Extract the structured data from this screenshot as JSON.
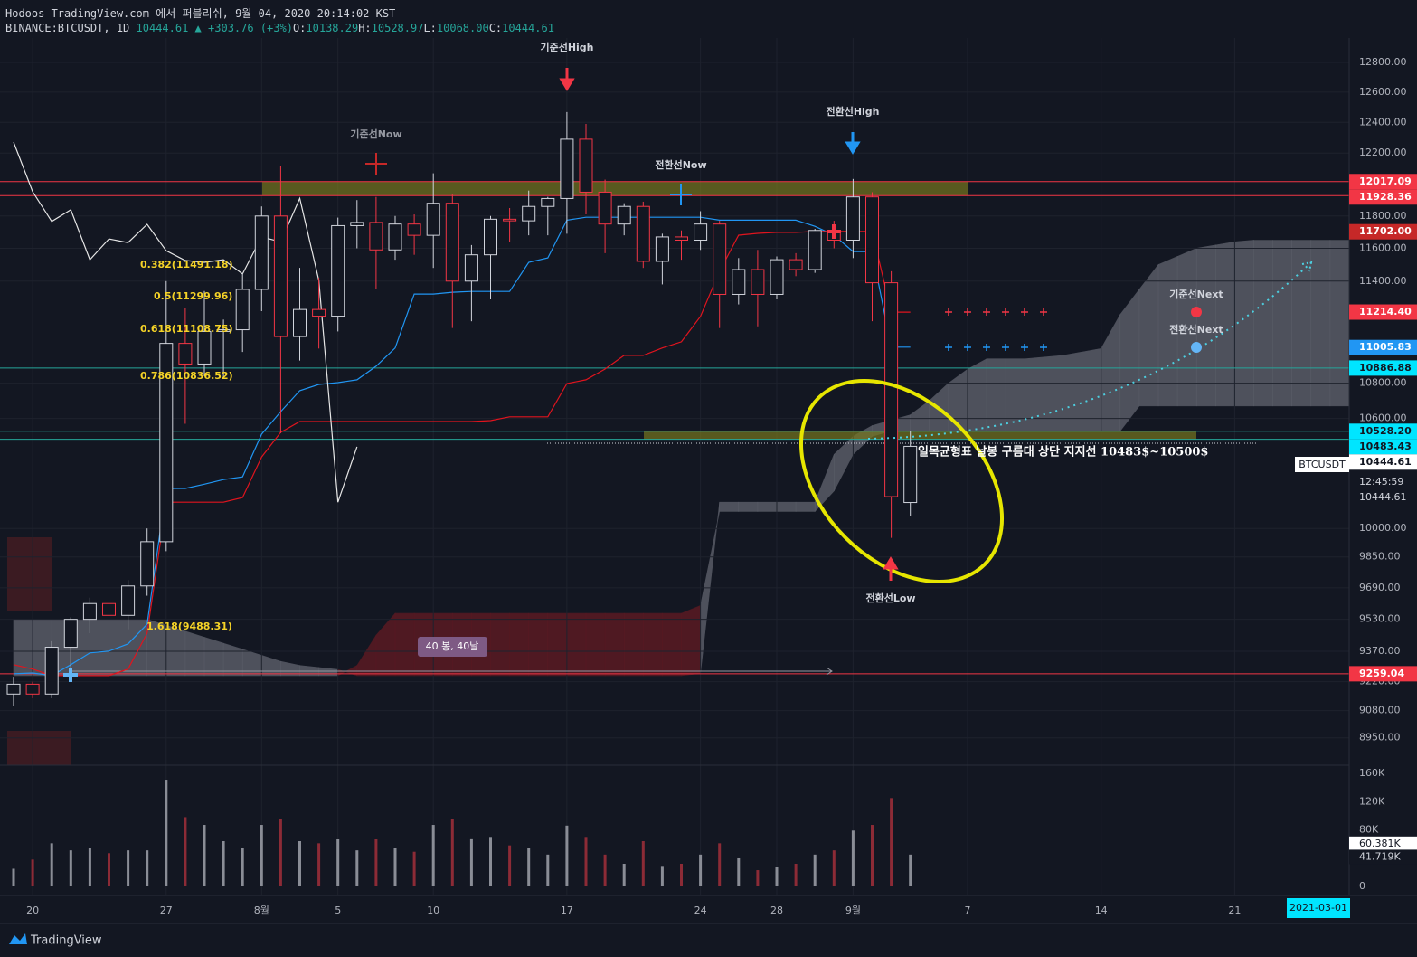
{
  "header": {
    "title": "Hodoos TradingView.com 에서 퍼블리쉬, 9월 04, 2020 20:14:02 KST",
    "symbol": "BINANCE:BTCUSDT, 1D",
    "price": "10444.61",
    "change_icon": "▲",
    "change": "+303.76 (+3%)",
    "ohlc": [
      [
        "O:",
        "10138.29"
      ],
      [
        "H:",
        "10528.97"
      ],
      [
        "L:",
        "10068.00"
      ],
      [
        "C:",
        "10444.61"
      ]
    ]
  },
  "chart_data": {
    "type": "candlestick",
    "log_scale": true,
    "grid": true,
    "categories": [
      null,
      "20",
      null,
      null,
      null,
      null,
      null,
      null,
      "27",
      null,
      null,
      null,
      null,
      "8월",
      null,
      null,
      null,
      "5",
      null,
      null,
      null,
      null,
      "10",
      null,
      null,
      null,
      null,
      null,
      null,
      "17",
      null,
      null,
      null,
      null,
      null,
      null,
      "24",
      null,
      null,
      null,
      "28",
      null,
      null,
      null,
      "9월",
      null,
      null,
      null,
      null,
      null,
      "7",
      null,
      null,
      null,
      null,
      null,
      null,
      "14",
      null,
      null,
      null,
      null,
      null,
      null,
      "21",
      null,
      null,
      null,
      null,
      null,
      null
    ],
    "open": [
      9160,
      9208,
      9160,
      9390,
      9530,
      9610,
      9550,
      9700,
      9930,
      11030,
      10910,
      11100,
      11110,
      11350,
      11800,
      11070,
      11230,
      11190,
      11740,
      11760,
      11590,
      11750,
      11680,
      11880,
      11400,
      11560,
      11780,
      11770,
      11860,
      11910,
      12290,
      11950,
      11750,
      11860,
      11520,
      11670,
      11650,
      11750,
      11320,
      11470,
      11320,
      11530,
      11470,
      11710,
      11650,
      11920,
      11390,
      10138.29,
      null,
      null,
      null,
      null,
      null,
      null,
      null,
      null,
      null,
      null,
      null,
      null,
      null,
      null,
      null,
      null,
      null,
      null,
      null,
      null,
      null,
      null,
      null
    ],
    "high": [
      9240,
      9220,
      9420,
      9540,
      9640,
      9640,
      9730,
      10000,
      11400,
      11240,
      11340,
      11170,
      11450,
      11860,
      12119,
      11480,
      11420,
      11790,
      11900,
      11920,
      11800,
      11810,
      12070,
      11940,
      11620,
      11800,
      11850,
      11960,
      11920,
      12468,
      12390,
      12030,
      11880,
      11890,
      11690,
      11710,
      11830,
      11770,
      11540,
      11590,
      11550,
      11570,
      11720,
      11770,
      12034,
      11950,
      11460,
      10528.97,
      null,
      null,
      null,
      null,
      null,
      null,
      null,
      null,
      null,
      null,
      null,
      null,
      null,
      null,
      null,
      null,
      null,
      null,
      null,
      null,
      null,
      null,
      null
    ],
    "low": [
      9100,
      9140,
      9140,
      9290,
      9460,
      9440,
      9480,
      9650,
      9880,
      10570,
      10840,
      10830,
      10980,
      11220,
      10518,
      10930,
      11000,
      11100,
      11600,
      11350,
      11530,
      11560,
      11480,
      11120,
      11160,
      11290,
      11640,
      11680,
      11680,
      11690,
      11810,
      11570,
      11680,
      11480,
      11380,
      11530,
      11590,
      11120,
      11260,
      11130,
      11290,
      11430,
      11450,
      11600,
      11540,
      11160,
      9950,
      10068,
      null,
      null,
      null,
      null,
      null,
      null,
      null,
      null,
      null,
      null,
      null,
      null,
      null,
      null,
      null,
      null,
      null,
      null,
      null,
      null,
      null,
      null,
      null
    ],
    "close": [
      9208,
      9160,
      9390,
      9530,
      9610,
      9550,
      9700,
      9930,
      11030,
      10910,
      11100,
      11110,
      11350,
      11800,
      11070,
      11230,
      11190,
      11740,
      11760,
      11590,
      11750,
      11680,
      11880,
      11400,
      11560,
      11780,
      11770,
      11860,
      11910,
      12290,
      11950,
      11750,
      11860,
      11520,
      11670,
      11650,
      11750,
      11320,
      11470,
      11320,
      11530,
      11470,
      11710,
      11650,
      11920,
      11390,
      10170,
      10444.61,
      null,
      null,
      null,
      null,
      null,
      null,
      null,
      null,
      null,
      null,
      null,
      null,
      null,
      null,
      null,
      null,
      null,
      null,
      null,
      null,
      null,
      null,
      null
    ],
    "up_color": "#d1d4dc",
    "down_color": "#f23645",
    "series": [
      {
        "name": "전환선",
        "color": "#2196f3",
        "values": [
          9259,
          9263,
          9250,
          9304,
          9362,
          9371,
          9407,
          9505,
          10214,
          10214,
          10237,
          10262,
          10277,
          10512,
          10638,
          10757,
          10793,
          10803,
          10819,
          10897,
          11003,
          11322,
          11322,
          11333,
          11338,
          11338,
          11338,
          11514,
          11541,
          11774,
          11792,
          11792,
          11792,
          11792,
          11792,
          11792,
          11792,
          11774,
          11774,
          11774,
          11774,
          11774,
          11736,
          11681,
          11580,
          11580,
          11008,
          11008,
          null,
          null,
          null,
          null,
          null,
          null,
          null,
          null,
          null,
          null,
          null,
          null,
          null,
          null,
          null,
          null,
          null,
          null,
          null,
          null,
          null,
          null,
          null
        ]
      },
      {
        "name": "기준선",
        "color": "#e0141e",
        "values": [
          9304,
          9282,
          9250,
          9250,
          9250,
          9250,
          9282,
          9460,
          10140,
          10140,
          10140,
          10140,
          10165,
          10386,
          10522,
          10583,
          10583,
          10583,
          10583,
          10583,
          10583,
          10583,
          10583,
          10583,
          10583,
          10588,
          10609,
          10609,
          10609,
          10798,
          10819,
          10881,
          10960,
          10960,
          11003,
          11039,
          11189,
          11459,
          11681,
          11692,
          11698,
          11698,
          11704,
          11704,
          11704,
          11704,
          11214,
          11214,
          null,
          null,
          null,
          null,
          null,
          null,
          null,
          null,
          null,
          null,
          null,
          null,
          null,
          null,
          null,
          null,
          null,
          null,
          null,
          null,
          null,
          null,
          null
        ]
      },
      {
        "name": "후행스팬",
        "color": "#e6e6e6",
        "values": [
          12271,
          11953,
          11766,
          11839,
          11530,
          11658,
          11635,
          11748,
          11585,
          11525,
          11514,
          11530,
          11443,
          11670,
          11640,
          11911,
          11404,
          10140,
          10442,
          null,
          null,
          null,
          null,
          null,
          null,
          null,
          null,
          null,
          null,
          null,
          null,
          null,
          null,
          null,
          null,
          null,
          null,
          null,
          null,
          null,
          null,
          null,
          null,
          null,
          null,
          null,
          null,
          null,
          null,
          null,
          null,
          null,
          null,
          null,
          null,
          null,
          null,
          null,
          null,
          null,
          null,
          null,
          null,
          null,
          null,
          null,
          null,
          null,
          null,
          null,
          null
        ]
      }
    ],
    "cloud": {
      "up_color": "#5d606b",
      "down_color": "#5a1a22",
      "span_a": [
        9530,
        9530,
        9530,
        9530,
        9530,
        9530,
        9530,
        9530,
        9500,
        9470,
        9440,
        9410,
        9380,
        9350,
        9320,
        9300,
        9290,
        9280,
        9250,
        9250,
        9250,
        9250,
        9250,
        9250,
        9250,
        9250,
        9250,
        9250,
        9250,
        9250,
        9250,
        9250,
        9250,
        9250,
        9250,
        9250,
        9260,
        10140,
        10140,
        10140,
        10140,
        10140,
        10140,
        10400,
        10500,
        10560,
        10590,
        10620,
        10700,
        10800,
        10880,
        10940,
        10940,
        10940,
        10950,
        10960,
        10980,
        11000,
        11200,
        11350,
        11500,
        11550,
        11600,
        11620,
        11640,
        11650,
        11650,
        11650,
        11650,
        11650,
        11650
      ],
      "span_b": [
        9250,
        9250,
        9250,
        9250,
        9250,
        9250,
        9250,
        9250,
        9250,
        9250,
        9250,
        9250,
        9250,
        9250,
        9250,
        9250,
        9250,
        9250,
        9300,
        9450,
        9560,
        9560,
        9560,
        9560,
        9560,
        9560,
        9560,
        9560,
        9560,
        9560,
        9560,
        9560,
        9560,
        9560,
        9560,
        9560,
        9600,
        10090,
        10090,
        10090,
        10090,
        10090,
        10090,
        10200,
        10400,
        10500,
        10530,
        10530,
        10530,
        10530,
        10530,
        10530,
        10530,
        10530,
        10530,
        10530,
        10530,
        10530,
        10530,
        10670,
        10670,
        10670,
        10670,
        10670,
        10670,
        10670,
        10670,
        10670,
        10670,
        10670,
        10670
      ]
    },
    "ylim": [
      8821,
      12967
    ],
    "yticks": [
      {
        "value": 12800,
        "label": "12800.00"
      },
      {
        "value": 12600,
        "label": "12600.00"
      },
      {
        "value": 12400,
        "label": "12400.00"
      },
      {
        "value": 12200,
        "label": "12200.00"
      },
      {
        "value": 11800,
        "label": "11800.00"
      },
      {
        "value": 11600,
        "label": "11600.00"
      },
      {
        "value": 11400,
        "label": "11400.00"
      },
      {
        "value": 10800,
        "label": "10800.00"
      },
      {
        "value": 10600,
        "label": "10600.00"
      },
      {
        "value": 10000,
        "label": "10000.00"
      },
      {
        "value": 9850,
        "label": "9850.00"
      },
      {
        "value": 9690,
        "label": "9690.00"
      },
      {
        "value": 9530,
        "label": "9530.00"
      },
      {
        "value": 9370,
        "label": "9370.00"
      },
      {
        "value": 9220,
        "label": "9220.00"
      },
      {
        "value": 9080,
        "label": "9080.00"
      },
      {
        "value": 8950,
        "label": "8950.00"
      }
    ],
    "price_labels": [
      {
        "price": 12017.09,
        "bg": "#f23645",
        "fg": "#ffffff",
        "line": "#f23645"
      },
      {
        "price": 11928.36,
        "bg": "#f23645",
        "fg": "#ffffff",
        "line": "#f23645"
      },
      {
        "price": {
          "value": 11702,
          "label": "11702.00"
        },
        "bg": "#c62828",
        "fg": "#ffffff"
      },
      {
        "price": {
          "value": 11214.4,
          "label": "11214.40"
        },
        "bg": "#f23645",
        "fg": "#ffffff"
      },
      {
        "price": 11005.83,
        "bg": "#2196f3",
        "fg": "#ffffff"
      },
      {
        "price": 10886.88,
        "bg": "#00e5ff",
        "fg": "#131722",
        "line": "#26a69a"
      },
      {
        "price": {
          "value": 10528.2,
          "label": "10528.20"
        },
        "bg": "#00e5ff",
        "fg": "#131722",
        "line": "#26a69a"
      },
      {
        "price": 10483.43,
        "bg": "#00e5ff",
        "fg": "#131722",
        "line": "#26a69a"
      },
      {
        "price": 10444.61,
        "bg": "#ffffff",
        "fg": "#131722"
      },
      {
        "price": 9259.04,
        "bg": "#f23645",
        "fg": "#ffffff",
        "line": "#f23645"
      }
    ],
    "status": {
      "symbol": "BTCUSDT",
      "countdown": "12:45:59",
      "price": "10444.61"
    },
    "volume": {
      "values": [
        25000,
        38000,
        61000,
        51000,
        54000,
        47000,
        51000,
        51000,
        151000,
        98000,
        87000,
        64000,
        54000,
        87000,
        96000,
        64000,
        61000,
        67000,
        51000,
        67000,
        54000,
        49000,
        87000,
        96000,
        68000,
        70000,
        58000,
        54000,
        45000,
        86000,
        70000,
        45000,
        32000,
        64000,
        29000,
        32000,
        45000,
        61000,
        41000,
        23000,
        28000,
        32000,
        45000,
        51000,
        79000,
        87000,
        125000,
        45000,
        null,
        null,
        null,
        null,
        null,
        null,
        null,
        null,
        null,
        null,
        null,
        null,
        null,
        null,
        null,
        null,
        null,
        null,
        null,
        null,
        null,
        null,
        null
      ],
      "up_color": "#8a8d96",
      "down_color": "#8c2b36",
      "ylim": [
        0,
        171520
      ],
      "yticks": [
        {
          "value": 160000,
          "label": "160K"
        },
        {
          "value": 120000,
          "label": "120K"
        },
        {
          "value": 80000,
          "label": "80K"
        },
        0
      ],
      "labels": [
        {
          "value": 60381,
          "label": "60.381K"
        },
        {
          "value": 41719,
          "label": "41.719K"
        }
      ]
    },
    "cursor_date": "2021-03-01",
    "annotations": {
      "kijun_high": "기준선High",
      "kijun_now": "기준선Now",
      "tenkan_now": "전환선Now",
      "tenkan_high": "전환선High",
      "kijun_next": "기준선Next",
      "tenkan_next": "전환선Next",
      "tenkan_low": "전환선Low",
      "note": "일목균형표 날봉 구름대 상단 지지선 10483$~10500$",
      "bars": "40 봉, 40날",
      "fib": [
        "0.382(11491.18)",
        "0.5(11299.96)",
        "0.618(11108.75)",
        "0.786(10836.52)",
        "1.618(9488.31)"
      ]
    }
  },
  "footer": {
    "brand": "TradingView"
  }
}
